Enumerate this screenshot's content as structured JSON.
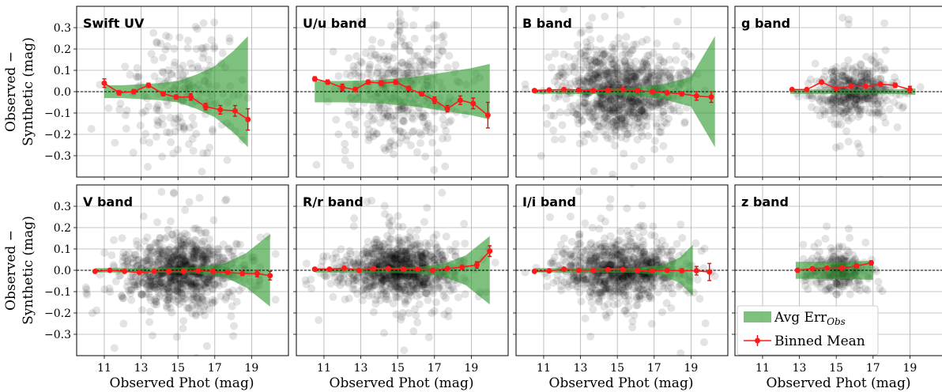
{
  "chart_data": {
    "type": "scatter",
    "rows": 2,
    "cols": 4,
    "xlabel": "Observed Phot (mag)",
    "ylabel_line1": "Observed −",
    "ylabel_line2": "Synthetic (mag)",
    "xlim": [
      9.5,
      21
    ],
    "ylim": [
      -0.4,
      0.4
    ],
    "x_ticks": [
      11,
      13,
      15,
      17,
      19
    ],
    "y_ticks": [
      -0.3,
      -0.2,
      -0.1,
      0.0,
      0.1,
      0.2,
      0.3
    ],
    "y_tick_labels": [
      "−0.3",
      "−0.2",
      "−0.1",
      "0.0",
      "0.1",
      "0.2",
      "0.3"
    ],
    "grid": true,
    "zero_line": true,
    "legend": {
      "position": "lower-right panel, lower-left",
      "band_label_main": "Avg Err",
      "band_label_sub": "Obs",
      "mean_label": "Binned Mean"
    },
    "colors": {
      "band": "#2e9a2e",
      "mean": "#ff1a1a",
      "points": "#000000"
    },
    "panels": [
      {
        "title": "Swift UV",
        "density": 0.22,
        "spread": 0.14,
        "xrange": [
          10.3,
          20.3
        ],
        "band": {
          "x": [
            11,
            12,
            13,
            14,
            15,
            16,
            17,
            18,
            18.8
          ],
          "half_width": [
            0.03,
            0.03,
            0.035,
            0.04,
            0.05,
            0.08,
            0.12,
            0.19,
            0.26
          ]
        },
        "binned_mean": {
          "x": [
            11.0,
            11.8,
            12.6,
            13.4,
            14.2,
            14.9,
            15.7,
            16.5,
            17.3,
            18.1,
            18.8
          ],
          "y": [
            0.04,
            -0.005,
            0.0,
            0.03,
            -0.01,
            -0.025,
            -0.025,
            -0.07,
            -0.085,
            -0.09,
            -0.13
          ],
          "err": [
            0.02,
            0.01,
            0.01,
            0.01,
            0.01,
            0.01,
            0.015,
            0.015,
            0.02,
            0.025,
            0.05
          ]
        }
      },
      {
        "title": "U/u band",
        "density": 0.42,
        "spread": 0.16,
        "xrange": [
          10.3,
          20.3
        ],
        "band": {
          "x": [
            10.5,
            12,
            14,
            16,
            17.5,
            19,
            20
          ],
          "half_width": [
            0.05,
            0.05,
            0.055,
            0.07,
            0.09,
            0.11,
            0.13
          ]
        },
        "binned_mean": {
          "x": [
            10.5,
            11.2,
            12.0,
            12.7,
            13.4,
            14.1,
            14.9,
            15.6,
            16.3,
            17.0,
            17.7,
            18.4,
            19.1,
            19.9
          ],
          "y": [
            0.06,
            0.045,
            0.02,
            0.01,
            0.045,
            0.04,
            0.045,
            0.015,
            -0.01,
            -0.04,
            -0.08,
            -0.04,
            -0.055,
            -0.11
          ],
          "err": [
            0.01,
            0.01,
            0.015,
            0.01,
            0.01,
            0.01,
            0.01,
            0.01,
            0.01,
            0.015,
            0.015,
            0.02,
            0.025,
            0.06
          ]
        }
      },
      {
        "title": "B band",
        "density": 1.0,
        "spread": 0.1,
        "xrange": [
          10.0,
          20.3
        ],
        "band": {
          "x": [
            10.5,
            12,
            14,
            16,
            17.5,
            19,
            20.3
          ],
          "half_width": [
            0.01,
            0.01,
            0.012,
            0.02,
            0.035,
            0.07,
            0.26
          ]
        },
        "binned_mean": {
          "x": [
            10.5,
            11.3,
            12.1,
            12.9,
            13.7,
            14.5,
            15.3,
            16.1,
            16.9,
            17.7,
            18.5,
            19.3,
            20.1
          ],
          "y": [
            0.005,
            0.008,
            0.01,
            0.008,
            0.005,
            0.008,
            0.01,
            0.005,
            0.0,
            -0.005,
            -0.01,
            -0.02,
            -0.025
          ],
          "err": [
            0.005,
            0.005,
            0.005,
            0.005,
            0.005,
            0.005,
            0.005,
            0.005,
            0.005,
            0.008,
            0.01,
            0.02,
            0.025
          ]
        }
      },
      {
        "title": "g band",
        "density": 0.45,
        "spread": 0.065,
        "xrange": [
          12.4,
          19.6
        ],
        "band": {
          "x": [
            12.5,
            14,
            16,
            18,
            19.3
          ],
          "half_width": [
            0.01,
            0.01,
            0.01,
            0.01,
            0.015
          ]
        },
        "binned_mean": {
          "x": [
            12.6,
            13.4,
            14.2,
            15.0,
            15.8,
            16.6,
            17.4,
            18.2,
            19.0
          ],
          "y": [
            0.01,
            0.01,
            0.045,
            0.015,
            0.025,
            0.025,
            0.035,
            0.03,
            0.01
          ],
          "err": [
            0.005,
            0.005,
            0.005,
            0.005,
            0.005,
            0.005,
            0.005,
            0.01,
            0.015
          ]
        }
      },
      {
        "title": "V band",
        "density": 1.0,
        "spread": 0.075,
        "xrange": [
          10.0,
          20.3
        ],
        "band": {
          "x": [
            10.5,
            13,
            16,
            17.5,
            18.7,
            20.0
          ],
          "half_width": [
            0.01,
            0.01,
            0.015,
            0.03,
            0.08,
            0.17
          ]
        },
        "binned_mean": {
          "x": [
            10.5,
            11.3,
            12.1,
            12.9,
            13.7,
            14.5,
            15.3,
            16.1,
            16.9,
            17.7,
            18.5,
            19.3,
            20.0
          ],
          "y": [
            -0.005,
            0.0,
            -0.005,
            -0.01,
            -0.005,
            -0.005,
            -0.005,
            -0.003,
            -0.005,
            -0.01,
            -0.015,
            -0.015,
            -0.025
          ],
          "err": [
            0.005,
            0.005,
            0.005,
            0.005,
            0.005,
            0.005,
            0.005,
            0.005,
            0.005,
            0.005,
            0.01,
            0.015,
            0.02
          ]
        }
      },
      {
        "title": "R/r band",
        "density": 1.0,
        "spread": 0.065,
        "xrange": [
          10.0,
          20.3
        ],
        "band": {
          "x": [
            10.5,
            13,
            16,
            17.5,
            18.7,
            20.0
          ],
          "half_width": [
            0.01,
            0.01,
            0.015,
            0.03,
            0.07,
            0.16
          ]
        },
        "binned_mean": {
          "x": [
            10.5,
            11.3,
            12.1,
            12.9,
            13.7,
            14.5,
            15.3,
            16.1,
            16.9,
            17.7,
            18.5,
            19.3,
            20.0
          ],
          "y": [
            0.005,
            0.005,
            0.01,
            0.0,
            0.008,
            0.008,
            0.005,
            0.005,
            0.0,
            0.008,
            0.015,
            0.025,
            0.09
          ],
          "err": [
            0.005,
            0.005,
            0.005,
            0.005,
            0.005,
            0.005,
            0.005,
            0.005,
            0.005,
            0.005,
            0.008,
            0.015,
            0.025
          ]
        }
      },
      {
        "title": "I/i band",
        "density": 0.95,
        "spread": 0.07,
        "xrange": [
          10.0,
          20.3
        ],
        "band": {
          "x": [
            10.5,
            13,
            16,
            17.5,
            18.4,
            19.1
          ],
          "half_width": [
            0.01,
            0.01,
            0.012,
            0.025,
            0.06,
            0.12
          ]
        },
        "binned_mean": {
          "x": [
            10.5,
            11.3,
            12.1,
            12.9,
            13.7,
            14.5,
            15.3,
            16.1,
            16.9,
            17.7,
            18.5,
            19.3,
            20.0
          ],
          "y": [
            -0.005,
            -0.003,
            0.005,
            0.0,
            0.0,
            0.003,
            0.003,
            0.0,
            -0.003,
            0.0,
            -0.002,
            -0.002,
            -0.008
          ],
          "err": [
            0.005,
            0.005,
            0.005,
            0.005,
            0.005,
            0.005,
            0.005,
            0.005,
            0.005,
            0.005,
            0.008,
            0.02,
            0.04
          ]
        }
      },
      {
        "title": "z band",
        "density": 0.28,
        "spread": 0.05,
        "xrange": [
          12.3,
          17.8
        ],
        "band": {
          "x": [
            12.8,
            14,
            15.5,
            17.0
          ],
          "half_width": [
            0.04,
            0.04,
            0.04,
            0.045
          ]
        },
        "binned_mean": {
          "x": [
            12.9,
            13.7,
            14.5,
            15.3,
            16.1,
            16.9
          ],
          "y": [
            0.0,
            0.008,
            0.01,
            0.01,
            0.02,
            0.035
          ],
          "err": [
            0.005,
            0.005,
            0.005,
            0.005,
            0.01,
            0.01
          ]
        }
      }
    ]
  }
}
